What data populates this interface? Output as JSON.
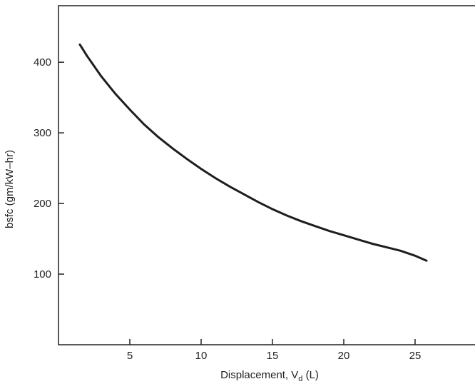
{
  "chart_data": {
    "type": "line",
    "title": "",
    "xlabel": "Displacement, V",
    "xlabel_sub": "d",
    "xlabel_unit": " (L)",
    "ylabel": "bsfc (gm/kW–hr)",
    "xlim": [
      0,
      30
    ],
    "ylim": [
      0,
      480
    ],
    "xticks": [
      5,
      10,
      15,
      20,
      25
    ],
    "yticks": [
      100,
      200,
      300,
      400
    ],
    "grid": false,
    "colors": {
      "line": "#1e1e1e",
      "axis": "#222222",
      "text": "#222222"
    },
    "series": [
      {
        "values_x": [
          1.5,
          2,
          3,
          4,
          5,
          6,
          7,
          8,
          9,
          10,
          11,
          12,
          13,
          14,
          15,
          16,
          17,
          18,
          19,
          20,
          21,
          22,
          23,
          24,
          25,
          25.8
        ],
        "values_y": [
          425,
          409,
          380,
          355,
          333,
          312,
          294,
          278,
          263,
          249,
          236,
          224,
          213,
          202,
          192,
          183,
          175,
          168,
          161,
          155,
          149,
          143,
          138,
          133,
          126,
          119
        ]
      }
    ]
  }
}
